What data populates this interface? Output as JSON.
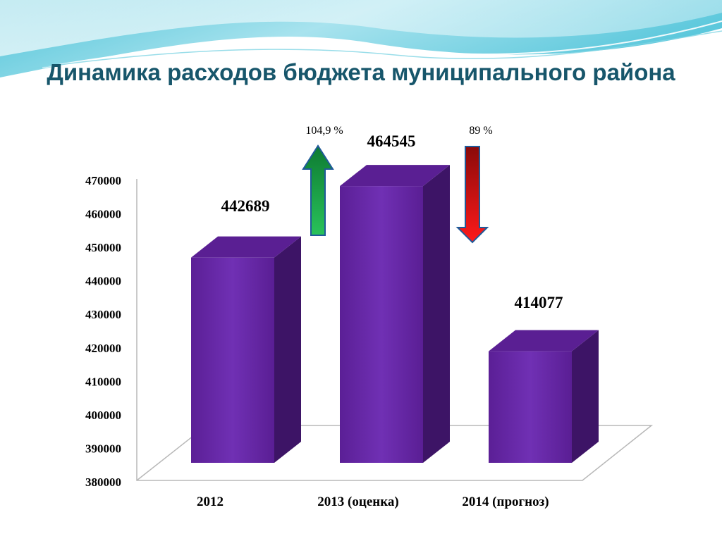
{
  "slide": {
    "title": "Динамика расходов бюджета муниципального района"
  },
  "colors": {
    "title": "#17566b",
    "bar_front": "#6b27a8",
    "bar_side": "#3d1466",
    "bar_top": "#5a1f93",
    "arrow_up": "#1aa84a",
    "arrow_down": "#e01010",
    "arrow_outline": "#1f5a99"
  },
  "chart_data": {
    "type": "bar",
    "title": "",
    "categories": [
      "2012",
      "2013 (оценка)",
      "2014 (прогноз)"
    ],
    "values": [
      442689,
      464545,
      414077
    ],
    "data_labels": [
      "442689",
      "464545",
      "414077"
    ],
    "ylim": [
      380000,
      470000
    ],
    "yticks": [
      380000,
      390000,
      400000,
      410000,
      420000,
      430000,
      440000,
      450000,
      460000,
      470000
    ],
    "ytick_labels": [
      "380000",
      "390000",
      "400000",
      "410000",
      "420000",
      "430000",
      "440000",
      "450000",
      "460000",
      "470000"
    ],
    "grid": false,
    "legend": "none",
    "annotations": [
      {
        "text": "104,9 %",
        "direction": "up",
        "between": [
          "2012",
          "2013 (оценка)"
        ]
      },
      {
        "text": "89 %",
        "direction": "down",
        "between": [
          "2013 (оценка)",
          "2014 (прогноз)"
        ]
      }
    ]
  }
}
